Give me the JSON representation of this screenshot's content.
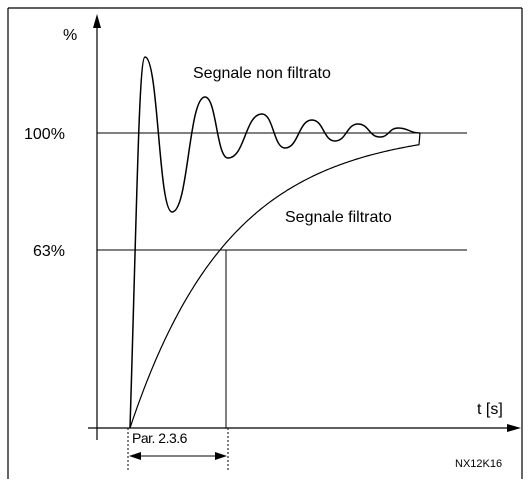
{
  "axis": {
    "y_label": "%",
    "x_label": "t [s]",
    "level_100": "100%",
    "level_63": "63%"
  },
  "curves": {
    "unfiltered": "Segnale non filtrato",
    "filtered": "Segnale filtrato"
  },
  "parameter": "Par. 2.3.6",
  "code": "NX12K16"
}
